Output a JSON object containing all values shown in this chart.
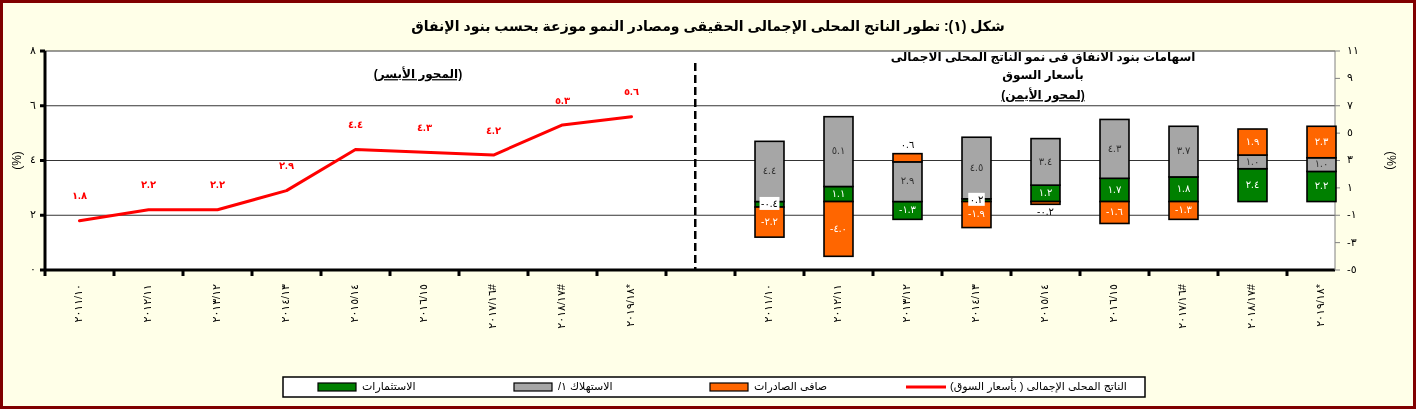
{
  "chart_data": {
    "type": "bar",
    "title": "شكل (١): تطور الناتج المحلى الإجمالى الحقيقى  ومصادر النمو موزعة بحسب بنود الإنفاق",
    "annotations": [
      "(المحور الأيسر)",
      "اسهامات بنود الانفاق فى نمو الناتج المحلى الاجمالى",
      "بأسعار السوق",
      "(لمحور الأيمن)"
    ],
    "ylabel": "(%)",
    "y2label": "(%)",
    "categories": [
      "٢٠١١/١٠",
      "٢٠١٢/١١",
      "٢٠١٣/١٢",
      "٢٠١٤/١٣",
      "٢٠١٥/١٤",
      "٢٠١٦/١٥",
      "٢٠١٧/١٦#",
      "٢٠١٨/١٧#",
      "٢٠١٩/١٨*",
      null,
      "٢٠١١/١٠",
      "٢٠١٢/١١",
      "٢٠١٣/١٢",
      "٢٠١٤/١٣",
      "٢٠١٥/١٤",
      "٢٠١٦/١٥",
      "٢٠١٧/١٦#",
      "٢٠١٨/١٧#",
      "٢٠١٩/١٨*"
    ],
    "stacked": true,
    "grid": "y",
    "legend": "bottom",
    "ylim": [
      0,
      8
    ],
    "yticks": [
      {
        "value": 0,
        "label": "٠"
      },
      {
        "value": 2,
        "label": "٢"
      },
      {
        "value": 4,
        "label": "٤"
      },
      {
        "value": 6,
        "label": "٦"
      },
      {
        "value": 8,
        "label": "٨"
      }
    ],
    "y2lim": [
      -5,
      11
    ],
    "y2ticks": [
      {
        "value": -5,
        "label": "-٥"
      },
      {
        "value": -3,
        "label": "-٣"
      },
      {
        "value": -1,
        "label": "-١"
      },
      {
        "value": 1,
        "label": "١"
      },
      {
        "value": 3,
        "label": "٣"
      },
      {
        "value": 5,
        "label": "٥"
      },
      {
        "value": 7,
        "label": "٧"
      },
      {
        "value": 9,
        "label": "٩"
      },
      {
        "value": 11,
        "label": "١١"
      }
    ],
    "series": [
      {
        "name": "الاستثمارات",
        "color": "#008000",
        "axis": "y2",
        "values": [
          null,
          null,
          null,
          null,
          null,
          null,
          null,
          null,
          null,
          null,
          -0.4,
          1.1,
          -1.3,
          0.2,
          1.2,
          1.7,
          1.8,
          2.4,
          2.2
        ],
        "value_labels": [
          null,
          null,
          null,
          null,
          null,
          null,
          null,
          null,
          null,
          null,
          "-٠.٤",
          "١.١",
          "-١.٣",
          "٠.٢",
          "١.٢",
          "١.٧",
          "١.٨",
          "٢.٤",
          "٢.٢"
        ]
      },
      {
        "name": "الاستهلاك ١/",
        "color": "#A6A6A6",
        "axis": "y2",
        "values": [
          null,
          null,
          null,
          null,
          null,
          null,
          null,
          null,
          null,
          null,
          4.4,
          5.1,
          2.9,
          4.5,
          3.4,
          4.3,
          3.7,
          1.0,
          1.0
        ],
        "value_labels": [
          null,
          null,
          null,
          null,
          null,
          null,
          null,
          null,
          null,
          null,
          "٤.٤",
          "٥.١",
          "٢.٩",
          "٤.٥",
          "٣.٤",
          "٤.٣",
          "٣.٧",
          "١.٠",
          "١.٠"
        ]
      },
      {
        "name": "صافى الصادرات",
        "color": "#FF6600",
        "axis": "y2",
        "values": [
          null,
          null,
          null,
          null,
          null,
          null,
          null,
          null,
          null,
          null,
          -2.2,
          -4.0,
          0.6,
          -1.9,
          -0.2,
          -1.6,
          -1.3,
          1.9,
          2.3
        ],
        "value_labels": [
          null,
          null,
          null,
          null,
          null,
          null,
          null,
          null,
          null,
          null,
          "-٢.٢",
          "-٤.٠",
          "٠.٦",
          "-١.٩",
          "-٠.٢",
          "-١.٦",
          "-١.٣",
          "١.٩",
          "٢.٣"
        ]
      },
      {
        "name": "الناتج المحلى الإجمالى ( بأسعار السوق)",
        "type": "line",
        "color": "#FF0000",
        "line_style": "solid",
        "values": [
          1.8,
          2.2,
          2.2,
          2.9,
          4.4,
          4.3,
          4.2,
          5.3,
          5.6,
          null,
          null,
          null,
          null,
          null,
          null,
          null,
          null,
          null,
          null
        ],
        "value_labels": [
          "١.٨",
          "٢.٢",
          "٢.٢",
          "٢.٩",
          "٤.٤",
          "٤.٣",
          "٤.٢",
          "٥.٣",
          "٥.٦",
          null,
          null,
          null,
          null,
          null,
          null,
          null,
          null,
          null,
          null
        ]
      }
    ]
  }
}
